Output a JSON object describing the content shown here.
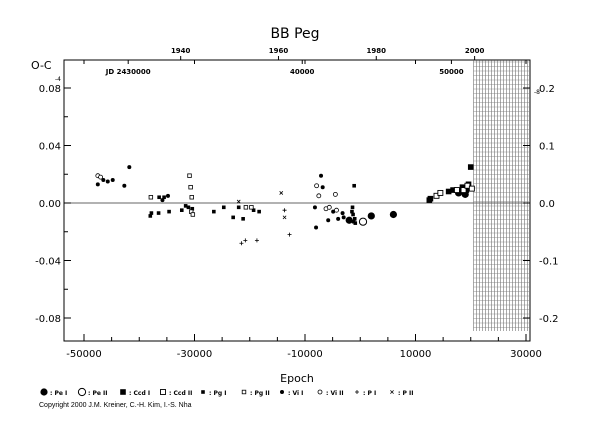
{
  "chart_data": {
    "type": "scatter",
    "title": "BB Peg",
    "xlabel": "Epoch",
    "ylabel": "O-C",
    "xlim": [
      -52000,
      32000
    ],
    "ylim": [
      -0.1,
      0.1
    ],
    "x_ticks": [
      "-50000",
      "-30000",
      "-10000",
      "10000",
      "30000"
    ],
    "x_tick_values": [
      -50000,
      -30000,
      -10000,
      10000,
      30000
    ],
    "y_ticks": [
      "0.08",
      "0.04",
      "0.00",
      "-0.04",
      "-0.08"
    ],
    "y_tick_values": [
      0.08,
      0.04,
      0.0,
      -0.04,
      -0.08
    ],
    "y2_ticks": [
      "0.2",
      "0.1",
      "0.0",
      "-0.1",
      "-0.2"
    ],
    "y2_tick_values": [
      0.2,
      0.1,
      0.0,
      -0.1,
      -0.2
    ],
    "y2_scale": 2.5,
    "top_year_ticks": [
      "1940",
      "1960",
      "1980",
      "2000"
    ],
    "top_year_epochs": [
      -32500,
      -14800,
      2900,
      20700
    ],
    "jd_labels": [
      "JD 2430000",
      "40000",
      "50000"
    ],
    "jd_label_epochs": [
      -42000,
      -10500,
      16500
    ],
    "corner_marks": [
      "-4",
      "-8"
    ],
    "hatched_region": [
      20500,
      32000
    ],
    "zero_line": true,
    "grid": false,
    "legend_position": "bottom",
    "legend": [
      {
        "label": ": Pe I",
        "marker": "big-filled-circle"
      },
      {
        "label": ": Pe II",
        "marker": "big-open-circle"
      },
      {
        "label": ": Ccd I",
        "marker": "filled-square"
      },
      {
        "label": ": Ccd II",
        "marker": "open-square"
      },
      {
        "label": ": Pg I",
        "marker": "small-filled-square"
      },
      {
        "label": ": Pg II",
        "marker": "small-open-square"
      },
      {
        "label": ": Vi I",
        "marker": "filled-circle"
      },
      {
        "label": ": Vi II",
        "marker": "open-circle"
      },
      {
        "label": ": P I",
        "marker": "plus"
      },
      {
        "label": ": P II",
        "marker": "cross"
      }
    ],
    "series": [
      {
        "name": "Pe I",
        "marker": "big-filled-circle",
        "points": [
          [
            -2000,
            -0.012
          ],
          [
            2000,
            -0.009
          ],
          [
            6000,
            -0.008
          ],
          [
            17800,
            0.007
          ],
          [
            19000,
            0.006
          ]
        ]
      },
      {
        "name": "Pe II",
        "marker": "big-open-circle",
        "points": [
          [
            500,
            -0.013
          ]
        ]
      },
      {
        "name": "Ccd I",
        "marker": "filled-square",
        "points": [
          [
            12500,
            0.002
          ],
          [
            12700,
            0.003
          ],
          [
            16000,
            0.008
          ],
          [
            16800,
            0.009
          ],
          [
            18500,
            0.011
          ],
          [
            19200,
            0.009
          ],
          [
            19600,
            0.013
          ],
          [
            20000,
            0.025
          ]
        ]
      },
      {
        "name": "Ccd II",
        "marker": "open-square",
        "points": [
          [
            13800,
            0.005
          ],
          [
            14500,
            0.007
          ],
          [
            17500,
            0.009
          ],
          [
            18700,
            0.009
          ],
          [
            19400,
            0.012
          ],
          [
            20200,
            0.01
          ]
        ]
      },
      {
        "name": "Pg I",
        "marker": "small-filled-square",
        "points": [
          [
            -38000,
            -0.009
          ],
          [
            -37800,
            -0.007
          ],
          [
            -36500,
            -0.007
          ],
          [
            -36400,
            0.004
          ],
          [
            -35500,
            0.004
          ],
          [
            -34600,
            -0.006
          ],
          [
            -32300,
            -0.005
          ],
          [
            -31600,
            -0.002
          ],
          [
            -31100,
            -0.003
          ],
          [
            -30400,
            -0.004
          ],
          [
            -26500,
            -0.006
          ],
          [
            -24700,
            -0.003
          ],
          [
            -23000,
            -0.01
          ],
          [
            -22000,
            -0.003
          ],
          [
            -21200,
            -0.011
          ],
          [
            -19300,
            -0.005
          ],
          [
            -18300,
            -0.006
          ],
          [
            -1500,
            -0.006
          ],
          [
            -1400,
            -0.003
          ],
          [
            -1300,
            -0.008
          ],
          [
            -1200,
            -0.013
          ],
          [
            -1100,
            0.012
          ],
          [
            -1000,
            -0.011
          ],
          [
            -900,
            -0.014
          ]
        ]
      },
      {
        "name": "Pg II",
        "marker": "small-open-square",
        "points": [
          [
            -37900,
            0.004
          ],
          [
            -30900,
            0.019
          ],
          [
            -30700,
            0.011
          ],
          [
            -30500,
            0.004
          ],
          [
            -30600,
            -0.006
          ],
          [
            -30300,
            -0.008
          ],
          [
            -20700,
            -0.003
          ],
          [
            -19700,
            -0.003
          ]
        ]
      },
      {
        "name": "Vi I",
        "marker": "filled-circle",
        "points": [
          [
            -47500,
            0.013
          ],
          [
            -46500,
            0.016
          ],
          [
            -45700,
            0.015
          ],
          [
            -44800,
            0.016
          ],
          [
            -42700,
            0.012
          ],
          [
            -41800,
            0.025
          ],
          [
            -35800,
            0.002
          ],
          [
            -34800,
            0.005
          ],
          [
            -8200,
            -0.003
          ],
          [
            -8000,
            -0.017
          ],
          [
            -7100,
            0.019
          ],
          [
            -6800,
            0.011
          ],
          [
            -5800,
            -0.012
          ],
          [
            -4900,
            -0.006
          ],
          [
            -4000,
            -0.011
          ],
          [
            -3200,
            -0.007
          ],
          [
            -3000,
            -0.01
          ]
        ]
      },
      {
        "name": "Vi II",
        "marker": "open-circle",
        "points": [
          [
            -47500,
            0.019
          ],
          [
            -47000,
            0.018
          ],
          [
            -7900,
            0.012
          ],
          [
            -7500,
            0.005
          ],
          [
            -6200,
            -0.004
          ],
          [
            -5600,
            -0.003
          ],
          [
            -4500,
            0.006
          ],
          [
            -4300,
            -0.005
          ]
        ]
      },
      {
        "name": "P I",
        "marker": "plus",
        "points": [
          [
            -21500,
            -0.028
          ],
          [
            -20800,
            -0.026
          ],
          [
            -18700,
            -0.026
          ],
          [
            -13700,
            -0.005
          ],
          [
            -12800,
            -0.022
          ]
        ]
      },
      {
        "name": "P II",
        "marker": "cross",
        "points": [
          [
            -22000,
            0.001
          ],
          [
            -14300,
            0.007
          ],
          [
            -13700,
            -0.01
          ]
        ]
      }
    ]
  },
  "copyright": "Copyright 2000 J.M. Kreiner, C.-H. Kim, I.-S. Nha"
}
